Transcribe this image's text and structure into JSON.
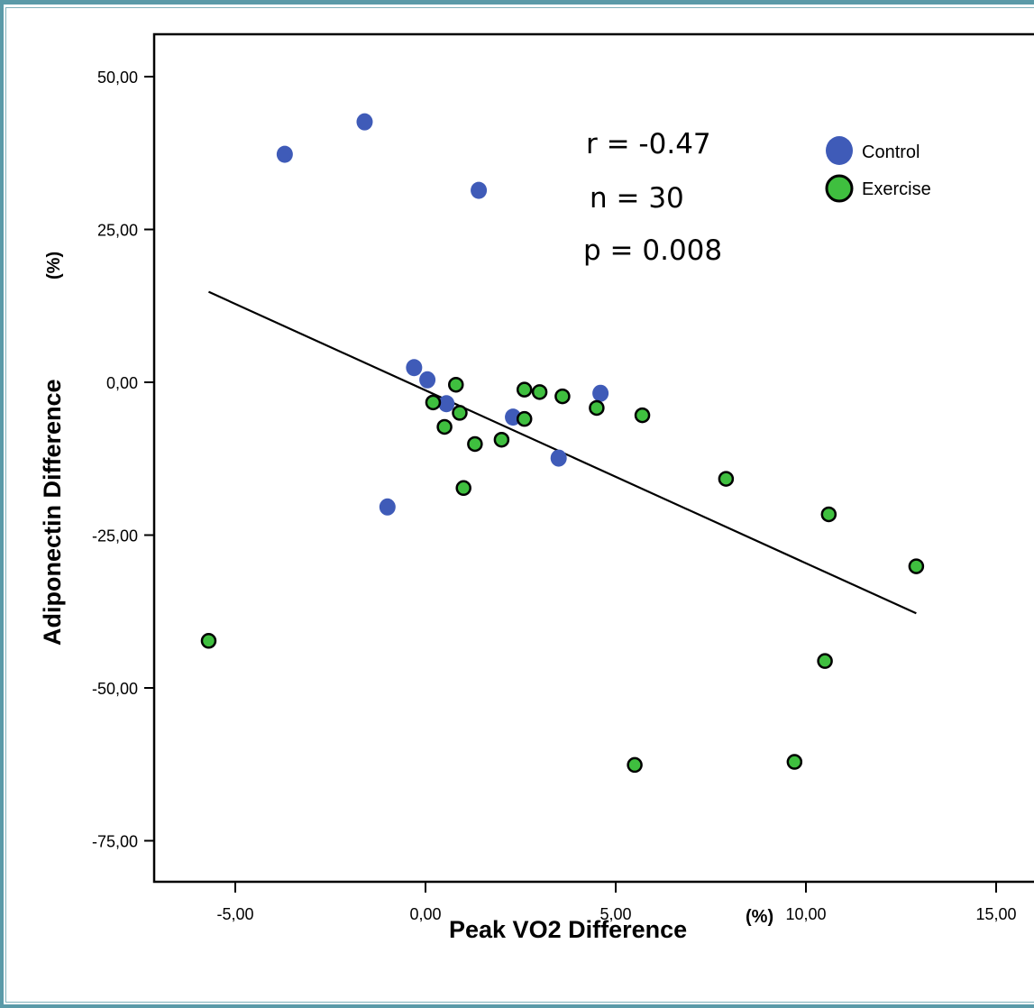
{
  "chart_data": {
    "type": "scatter",
    "xlabel": "Peak VO2 Difference",
    "xunit": "(%)",
    "ylabel": "Adiponectin Difference",
    "yunit": "(%)",
    "xlim": [
      -7.2,
      16.5
    ],
    "ylim": [
      -82,
      57
    ],
    "xticks": [
      -5,
      0,
      5,
      10,
      15
    ],
    "xtick_labels": [
      "-5,00",
      "0,00",
      "5,00",
      "10,00",
      "15,00"
    ],
    "yticks": [
      50,
      25,
      0,
      -25,
      -50,
      -75
    ],
    "ytick_labels": [
      "50,00",
      "25,00",
      "0,00",
      "-25,00",
      "-50,00",
      "-75,00"
    ],
    "grid": false,
    "legend_position": "top-right",
    "annotations": [
      "r = -0.47",
      "n = 30",
      "p = 0.008"
    ],
    "series": [
      {
        "name": "Control",
        "color": "#3f5bb8",
        "points": [
          {
            "x": -3.7,
            "y": 37.3
          },
          {
            "x": -1.6,
            "y": 42.6
          },
          {
            "x": 1.4,
            "y": 31.4
          },
          {
            "x": -0.3,
            "y": 2.4
          },
          {
            "x": 0.05,
            "y": 0.4
          },
          {
            "x": 0.55,
            "y": -3.5
          },
          {
            "x": 2.3,
            "y": -5.7
          },
          {
            "x": 4.6,
            "y": -1.8
          },
          {
            "x": 3.5,
            "y": -12.4
          },
          {
            "x": -1.0,
            "y": -20.4
          }
        ]
      },
      {
        "name": "Exercise",
        "color": "#3fbf3f",
        "points": [
          {
            "x": 0.8,
            "y": -0.4
          },
          {
            "x": 0.2,
            "y": -3.3
          },
          {
            "x": 0.9,
            "y": -5.0
          },
          {
            "x": 0.5,
            "y": -7.3
          },
          {
            "x": 1.3,
            "y": -10.1
          },
          {
            "x": 1.0,
            "y": -17.3
          },
          {
            "x": 2.0,
            "y": -9.4
          },
          {
            "x": 2.6,
            "y": -1.2
          },
          {
            "x": 3.0,
            "y": -1.6
          },
          {
            "x": 2.6,
            "y": -6.0
          },
          {
            "x": 3.6,
            "y": -2.3
          },
          {
            "x": 4.5,
            "y": -4.2
          },
          {
            "x": 5.7,
            "y": -5.4
          },
          {
            "x": 7.9,
            "y": -15.8
          },
          {
            "x": 10.6,
            "y": -21.6
          },
          {
            "x": 12.9,
            "y": -30.1
          },
          {
            "x": 10.5,
            "y": -45.6
          },
          {
            "x": -5.7,
            "y": -42.3
          },
          {
            "x": 5.5,
            "y": -62.6
          },
          {
            "x": 9.7,
            "y": -62.1
          }
        ]
      }
    ],
    "fit_line": {
      "x": [
        -5.7,
        12.9
      ],
      "y": [
        14.8,
        -37.8
      ]
    }
  }
}
